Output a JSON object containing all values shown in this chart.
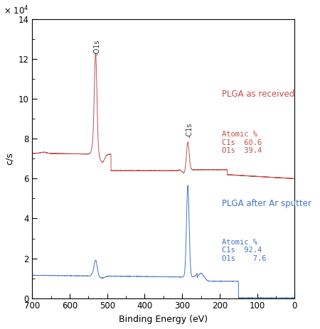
{
  "xlabel": "Binding Energy (eV)",
  "ylabel": "c/s",
  "ylim": [
    0,
    140000
  ],
  "xlim": [
    700,
    0
  ],
  "red_label": "PLGA as received",
  "blue_label": "PLGA after Ar sputter",
  "red_atomic": "Atomic %\nC1s  60.6\nO1s  39.4",
  "blue_atomic": "Atomic %\nC1s  92.4\nO1s    7.6",
  "red_color": "#c0504d",
  "blue_color": "#4472c4",
  "peak_label_color": "#333333",
  "background_color": "#ffffff"
}
